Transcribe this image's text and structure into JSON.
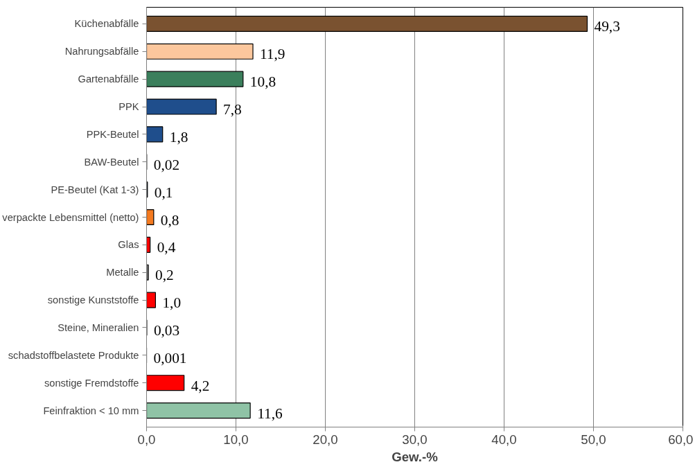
{
  "chart_data": {
    "type": "bar",
    "orientation": "horizontal",
    "xlabel": "Gew.-%",
    "categories": [
      "Küchenabfälle",
      "Nahrungsabfälle",
      "Gartenabfälle",
      "PPK",
      "PPK-Beutel",
      "BAW-Beutel",
      "PE-Beutel (Kat 1-3)",
      "verpackte Lebensmittel (netto)",
      "Glas",
      "Metalle",
      "sonstige Kunststoffe",
      "Steine, Mineralien",
      "schadstoffbelastete Produkte",
      "sonstige Fremdstoffe",
      "Feinfraktion < 10 mm"
    ],
    "values": [
      49.3,
      11.9,
      10.8,
      7.8,
      1.8,
      0.02,
      0.1,
      0.8,
      0.4,
      0.2,
      1.0,
      0.03,
      0.001,
      4.2,
      11.6
    ],
    "value_labels": [
      "49,3",
      "11,9",
      "10,8",
      "7,8",
      "1,8",
      "0,02",
      "0,1",
      "0,8",
      "0,4",
      "0,2",
      "1,0",
      "0,03",
      "0,001",
      "4,2",
      "11,6"
    ],
    "colors": [
      "#7a5230",
      "#fcc79d",
      "#3b7f5c",
      "#1f4e8c",
      "#1f4e8c",
      "#1f4e8c",
      "#1f4e8c",
      "#f47a20",
      "#ff0000",
      "#7f7f7f",
      "#ff0000",
      "#7f7f7f",
      "#7f7f7f",
      "#ff0000",
      "#8fc3a6"
    ],
    "xlim": [
      0,
      60
    ],
    "xticks": [
      {
        "value": 0,
        "label": "0,0"
      },
      {
        "value": 10,
        "label": "10,0"
      },
      {
        "value": 20,
        "label": "20,0"
      },
      {
        "value": 30,
        "label": "30,0"
      },
      {
        "value": 40,
        "label": "40,0"
      },
      {
        "value": 50,
        "label": "50,0"
      },
      {
        "value": 60,
        "label": "60,0"
      }
    ],
    "grid": "x"
  }
}
